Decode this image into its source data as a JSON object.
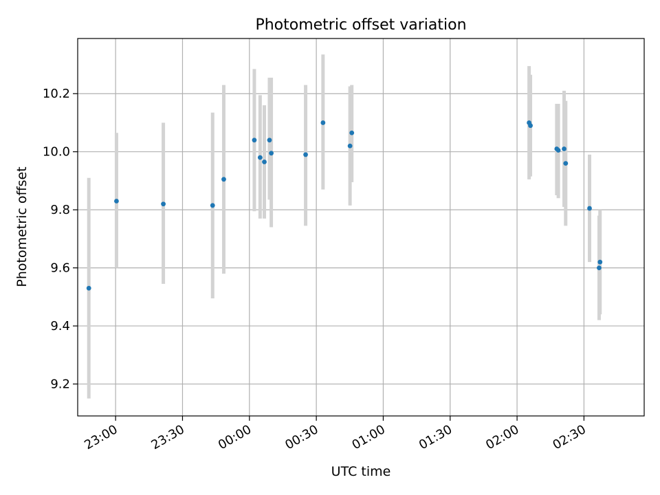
{
  "chart_data": {
    "type": "scatter",
    "title": "Photometric offset variation",
    "xlabel": "UTC time",
    "ylabel": "Photometric offset",
    "x_unit": "UTC",
    "x_ticks": [
      "23:00",
      "23:30",
      "00:00",
      "00:30",
      "01:00",
      "01:30",
      "02:00",
      "02:30"
    ],
    "y_ticks": [
      9.2,
      9.4,
      9.6,
      9.8,
      10.0,
      10.2
    ],
    "x_range": [
      "22:43",
      "02:57"
    ],
    "y_range": [
      9.09,
      10.39
    ],
    "grid": true,
    "point_color": "#1f77b4",
    "errorbar_color": "#d3d3d3",
    "points": [
      {
        "x": "22:48:00",
        "y": 9.53,
        "err_low": 9.15,
        "err_high": 9.91
      },
      {
        "x": "23:00:24",
        "y": 9.83,
        "err_low": 9.6,
        "err_high": 10.065
      },
      {
        "x": "23:21:24",
        "y": 9.82,
        "err_low": 9.545,
        "err_high": 10.1
      },
      {
        "x": "23:43:30",
        "y": 9.815,
        "err_low": 9.495,
        "err_high": 10.135
      },
      {
        "x": "23:48:30",
        "y": 9.905,
        "err_low": 9.58,
        "err_high": 10.23
      },
      {
        "x": "00:02:12",
        "y": 10.04,
        "err_low": 9.795,
        "err_high": 10.285
      },
      {
        "x": "00:04:48",
        "y": 9.98,
        "err_low": 9.77,
        "err_high": 10.195
      },
      {
        "x": "00:06:42",
        "y": 9.965,
        "err_low": 9.77,
        "err_high": 10.16
      },
      {
        "x": "00:09:00",
        "y": 10.04,
        "err_low": 9.835,
        "err_high": 10.255
      },
      {
        "x": "00:09:48",
        "y": 9.995,
        "err_low": 9.74,
        "err_high": 10.255
      },
      {
        "x": "00:25:12",
        "y": 9.99,
        "err_low": 9.745,
        "err_high": 10.23
      },
      {
        "x": "00:33:00",
        "y": 10.1,
        "err_low": 9.87,
        "err_high": 10.335
      },
      {
        "x": "00:45:06",
        "y": 10.02,
        "err_low": 9.815,
        "err_high": 10.225
      },
      {
        "x": "00:45:54",
        "y": 10.065,
        "err_low": 9.895,
        "err_high": 10.23
      },
      {
        "x": "02:05:24",
        "y": 10.1,
        "err_low": 9.905,
        "err_high": 10.295
      },
      {
        "x": "02:06:00",
        "y": 10.09,
        "err_low": 9.915,
        "err_high": 10.265
      },
      {
        "x": "02:17:48",
        "y": 10.01,
        "err_low": 9.85,
        "err_high": 10.165
      },
      {
        "x": "02:18:30",
        "y": 10.005,
        "err_low": 9.84,
        "err_high": 10.165
      },
      {
        "x": "02:21:06",
        "y": 10.01,
        "err_low": 9.81,
        "err_high": 10.21
      },
      {
        "x": "02:21:48",
        "y": 9.96,
        "err_low": 9.745,
        "err_high": 10.175
      },
      {
        "x": "02:32:30",
        "y": 9.805,
        "err_low": 9.62,
        "err_high": 9.99
      },
      {
        "x": "02:36:48",
        "y": 9.6,
        "err_low": 9.42,
        "err_high": 9.78
      },
      {
        "x": "02:37:12",
        "y": 9.62,
        "err_low": 9.44,
        "err_high": 9.8
      }
    ]
  }
}
